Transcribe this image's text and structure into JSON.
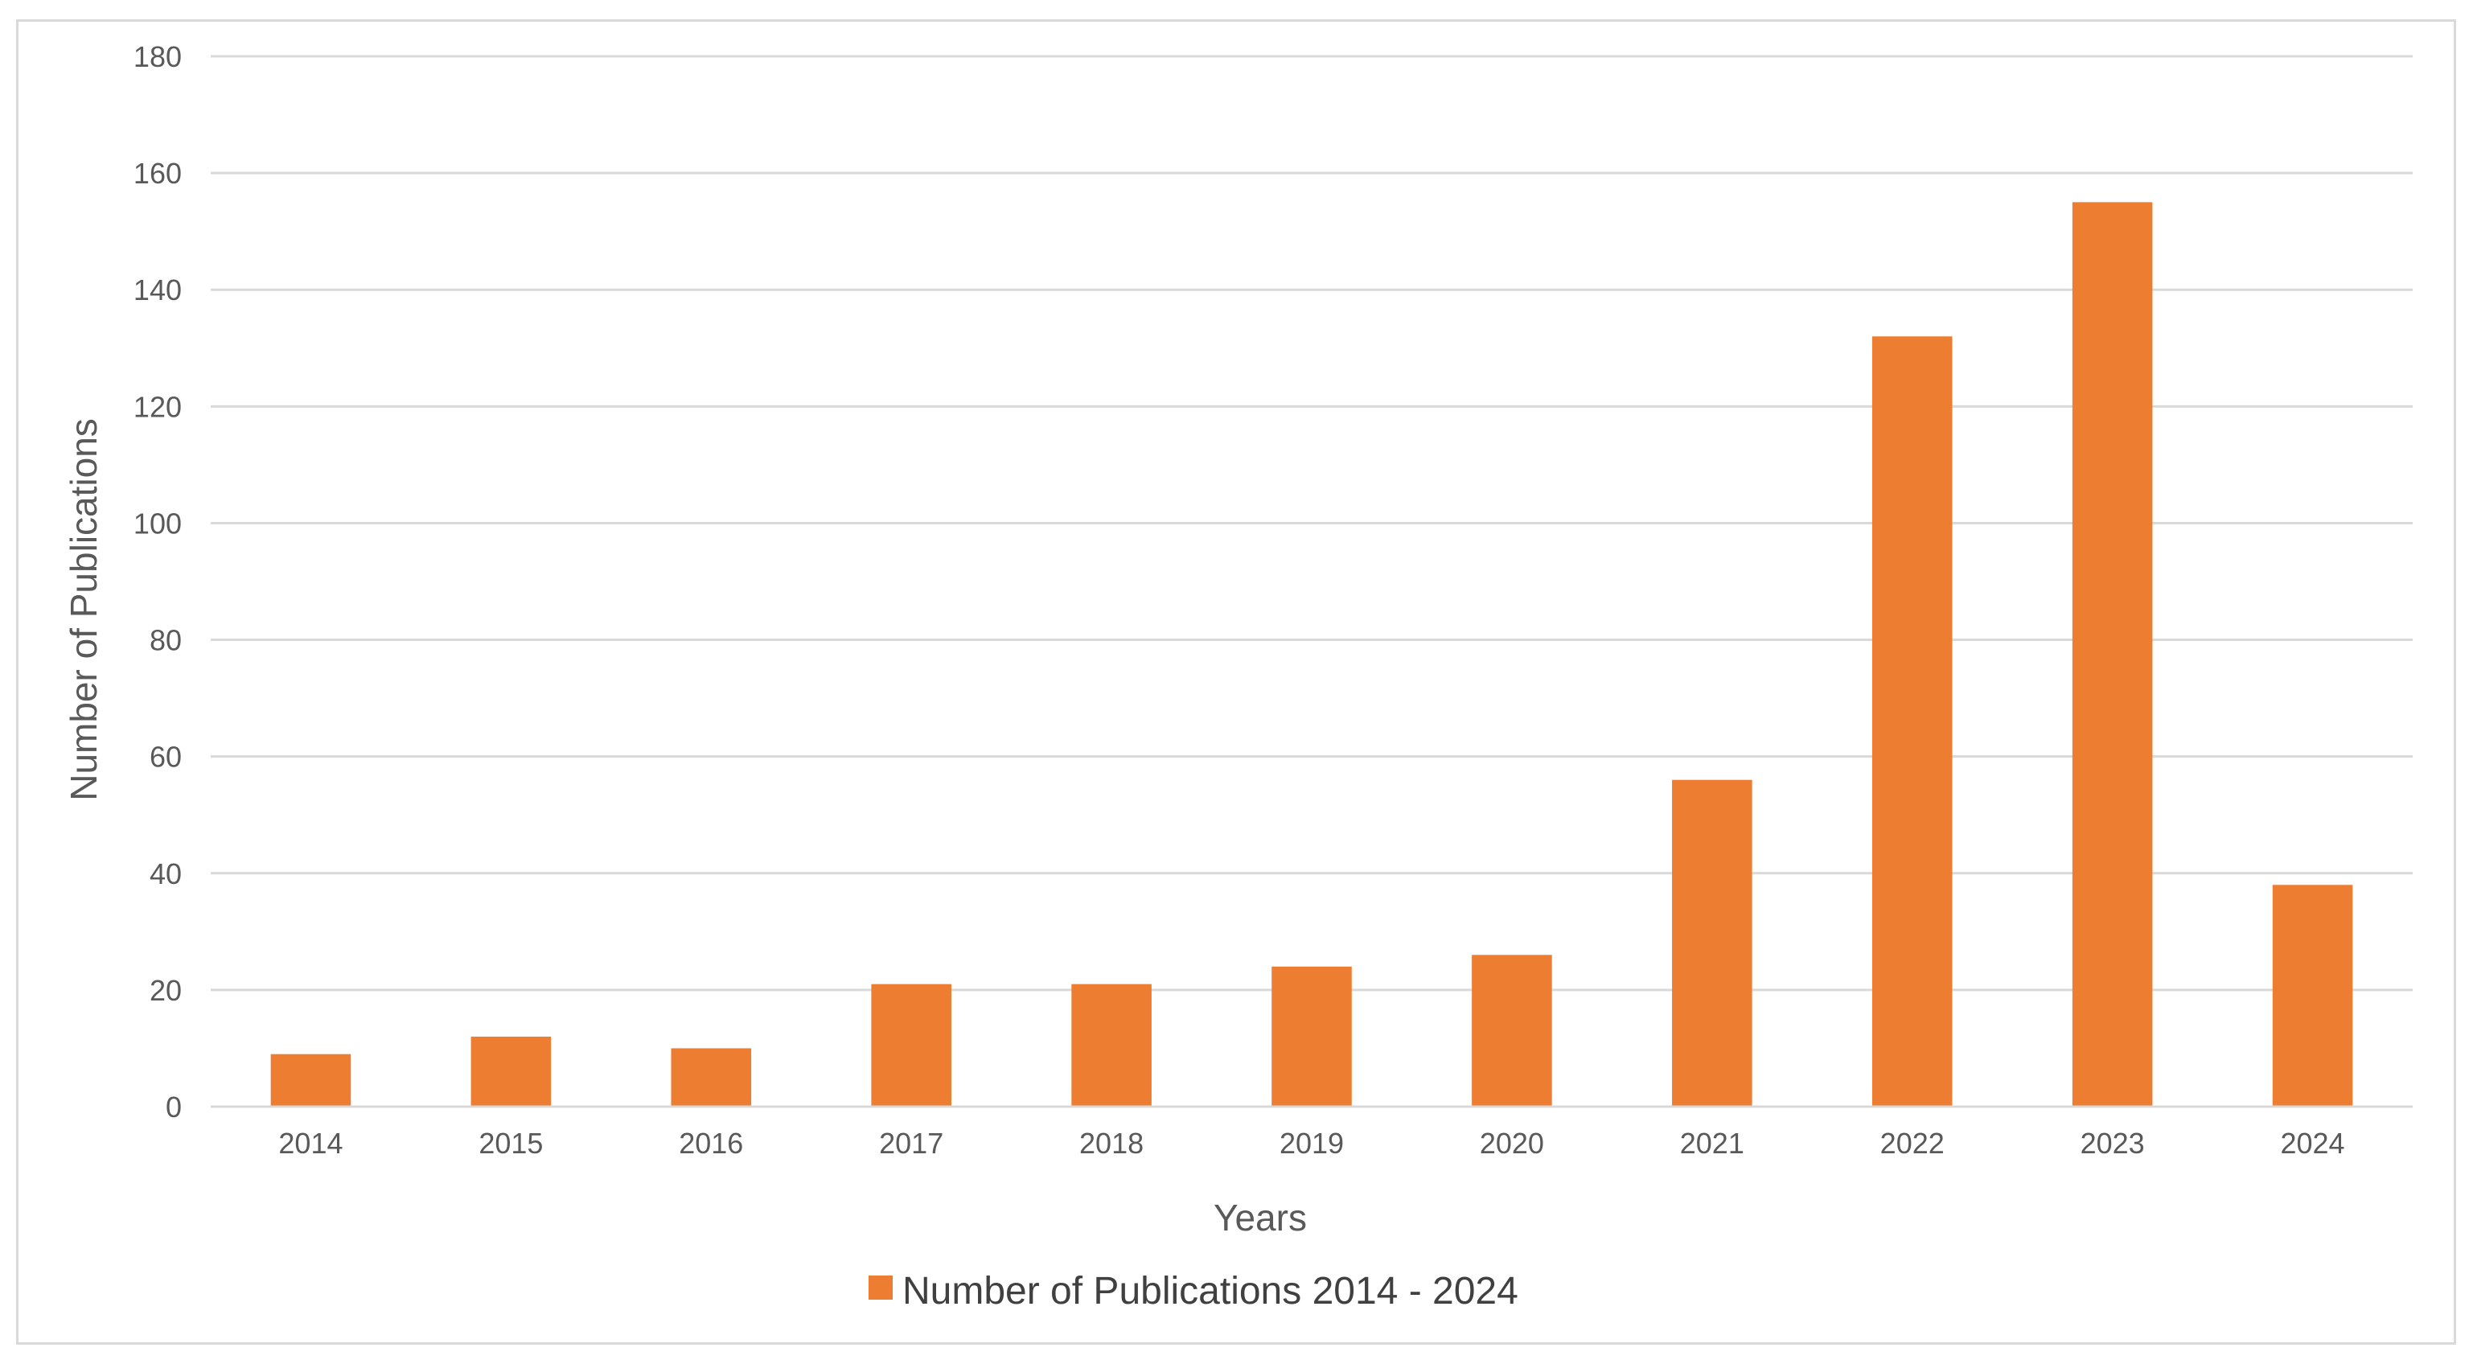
{
  "chart_data": {
    "type": "bar",
    "title": "",
    "xlabel": "Years",
    "ylabel": "Number of Publications",
    "categories": [
      "2014",
      "2015",
      "2016",
      "2017",
      "2018",
      "2019",
      "2020",
      "2021",
      "2022",
      "2023",
      "2024"
    ],
    "series": [
      {
        "name": "Number of Publications 2014 - 2024",
        "values": [
          9,
          12,
          10,
          21,
          21,
          24,
          26,
          56,
          132,
          155,
          38
        ],
        "color": "#ED7D31"
      }
    ],
    "ylim": [
      0,
      180
    ],
    "yticks": [
      0,
      20,
      40,
      60,
      80,
      100,
      120,
      140,
      160,
      180
    ],
    "grid": true,
    "legend_position": "bottom"
  }
}
